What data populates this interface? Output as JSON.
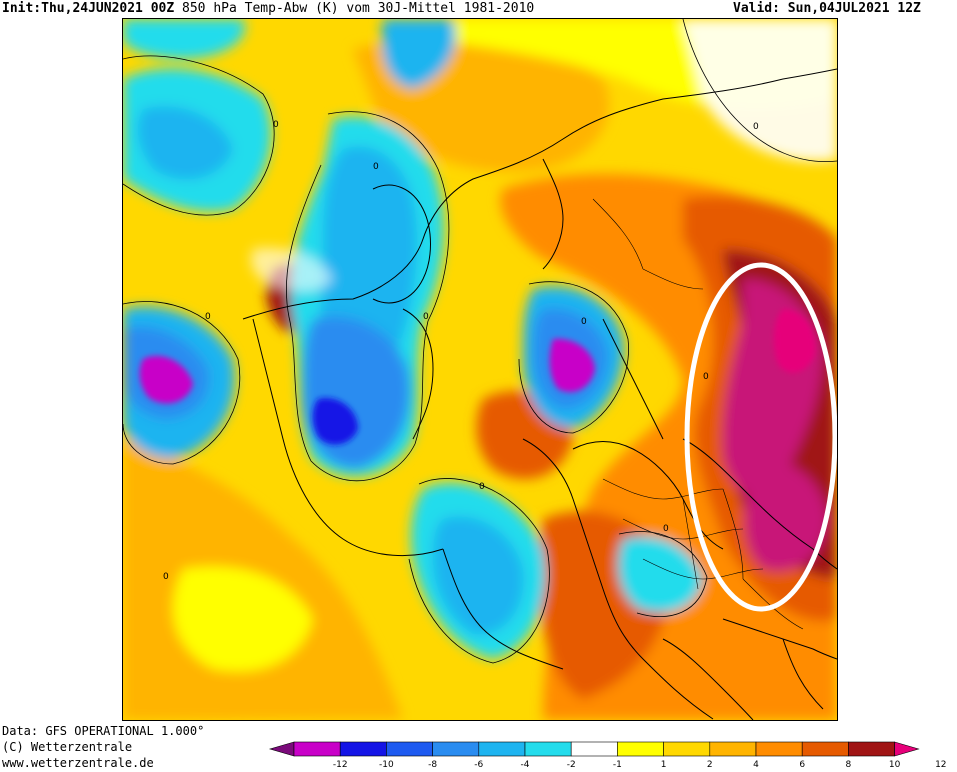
{
  "header": {
    "init_label": "Init:",
    "init_value": "Thu,24JUN2021 00Z",
    "title": "850 hPa Temp-Abw (K) vom 30J-Mittel 1981-2010",
    "valid_label": "Valid:",
    "valid_value": "Sun,04JUL2021 12Z"
  },
  "footer": {
    "data_source": "Data: GFS OPERATIONAL 1.000°",
    "copyright": "(C) Wetterzentrale",
    "url": "www.wetterzentrale.de"
  },
  "legend": {
    "tick_labels": [
      "-12",
      "-10",
      "-8",
      "-6",
      "-4",
      "-2",
      "-1",
      "1",
      "2",
      "4",
      "6",
      "8",
      "10",
      "12"
    ],
    "colors": [
      "#7a0a7a",
      "#c800c8",
      "#1414e6",
      "#1e5af0",
      "#2a8cf0",
      "#1eb4f0",
      "#24dcec",
      "#ffffff",
      "#ffff00",
      "#ffd800",
      "#ffb400",
      "#ff8c00",
      "#e65a00",
      "#a01414",
      "#e6007a"
    ]
  },
  "map": {
    "contour_label": "0",
    "highlight": "white-ellipse"
  }
}
